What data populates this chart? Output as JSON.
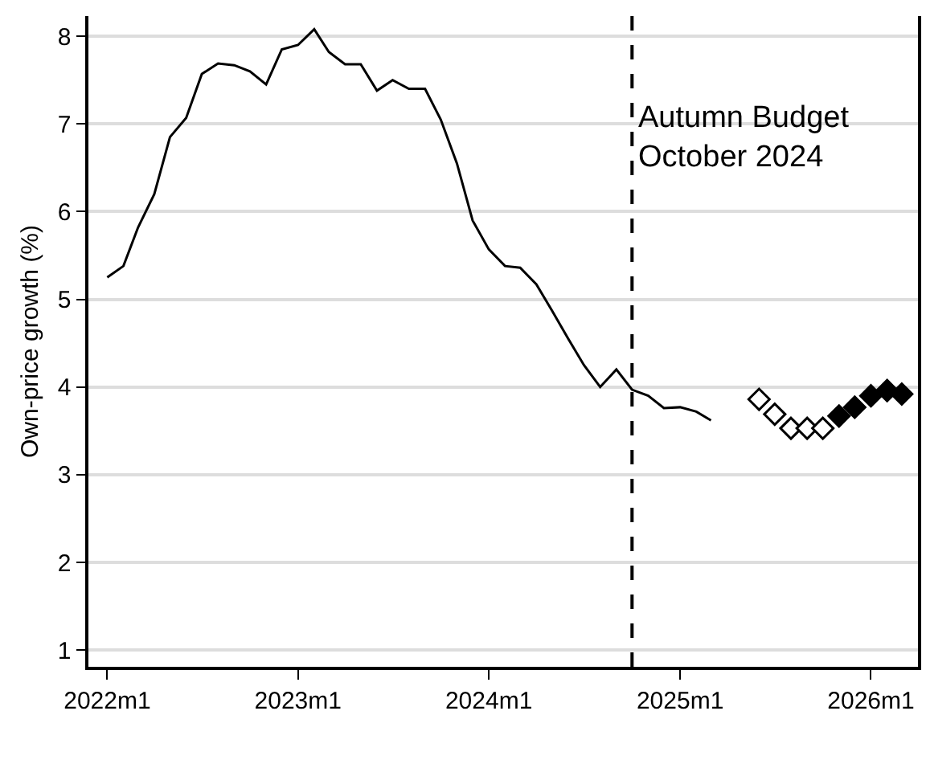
{
  "chart_data": {
    "type": "line",
    "ylabel": "Own-price growth (%)",
    "xlim": [
      "2021-11-26",
      "2026-04-01"
    ],
    "xticks": [
      {
        "value": "2022-01",
        "label": "2022m1"
      },
      {
        "value": "2023-01",
        "label": "2023m1"
      },
      {
        "value": "2024-01",
        "label": "2024m1"
      },
      {
        "value": "2025-01",
        "label": "2025m1"
      },
      {
        "value": "2026-01",
        "label": "2026m1"
      }
    ],
    "ylim": [
      0.81,
      8.23
    ],
    "yticks": [
      1,
      2,
      3,
      4,
      5,
      6,
      7,
      8
    ],
    "grid": "y",
    "series": [
      {
        "color": "#000000",
        "marker": "none",
        "line_style": "solid",
        "x": [
          "2022-01",
          "2022-02",
          "2022-03",
          "2022-04",
          "2022-05",
          "2022-06",
          "2022-07",
          "2022-08",
          "2022-09",
          "2022-10",
          "2022-11",
          "2022-12",
          "2023-01",
          "2023-02",
          "2023-03",
          "2023-04",
          "2023-05",
          "2023-06",
          "2023-07",
          "2023-08",
          "2023-09",
          "2023-10",
          "2023-11",
          "2023-12",
          "2024-01",
          "2024-02",
          "2024-03",
          "2024-04",
          "2024-05",
          "2024-06",
          "2024-07",
          "2024-08",
          "2024-09",
          "2024-10",
          "2024-11",
          "2024-12",
          "2025-01",
          "2025-02",
          "2025-03"
        ],
        "values": [
          5.25,
          5.38,
          5.82,
          6.2,
          6.85,
          7.07,
          7.57,
          7.69,
          7.67,
          7.6,
          7.45,
          7.85,
          7.9,
          8.08,
          7.82,
          7.68,
          7.68,
          7.38,
          7.5,
          7.4,
          7.4,
          7.05,
          6.55,
          5.9,
          5.57,
          5.38,
          5.36,
          5.17,
          4.87,
          4.55,
          4.25,
          4.0,
          4.2,
          3.97,
          3.9,
          3.76,
          3.77,
          3.72,
          3.62
        ]
      },
      {
        "type": "scatter",
        "color": "#ffffff",
        "marker": "diamond",
        "x": [
          "2025-06",
          "2025-07",
          "2025-08",
          "2025-09",
          "2025-10"
        ],
        "values": [
          3.86,
          3.69,
          3.53,
          3.53,
          3.53
        ]
      },
      {
        "type": "scatter",
        "color": "#000000",
        "marker": "diamond",
        "x": [
          "2025-11",
          "2025-12",
          "2026-01",
          "2026-02",
          "2026-03"
        ],
        "values": [
          3.67,
          3.77,
          3.9,
          3.96,
          3.92
        ]
      }
    ],
    "ref_lines": [
      {
        "axis": "x",
        "value": "2024-10",
        "label": "Autumn Budget\nOctober 2024",
        "color": "#000000",
        "line_style": "dashed"
      }
    ]
  }
}
